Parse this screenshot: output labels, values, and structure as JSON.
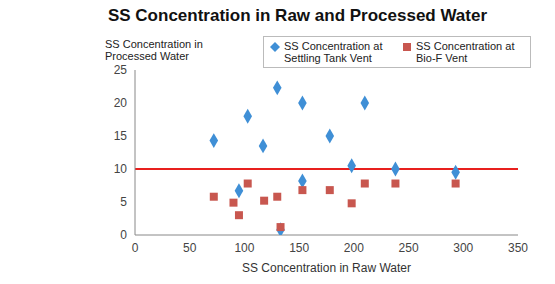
{
  "chart_data": {
    "type": "scatter",
    "title": "SS Concentration in Raw and Processed Water",
    "x_label": "SS Concentration in Raw Water",
    "y_label": "SS Concentration in Processed Water",
    "xlim": [
      0,
      350
    ],
    "xticks": [
      0,
      50,
      100,
      150,
      200,
      250,
      300,
      350
    ],
    "ylim": [
      0,
      25
    ],
    "yticks": [
      0,
      5,
      10,
      15,
      20,
      25
    ],
    "grid": false,
    "legend": "top-right",
    "reference_line": {
      "value": 10,
      "color": "#e8201e"
    },
    "series": [
      {
        "name": "SS Concentration at Settling Tank Vent",
        "color": "#3f8fd6",
        "marker": "diamond",
        "x": [
          72,
          95,
          103,
          117,
          130,
          133,
          153,
          153,
          178,
          198,
          210,
          238,
          293
        ],
        "values": [
          14.3,
          6.7,
          18,
          13.5,
          22.3,
          0.8,
          20,
          8.2,
          15,
          10.5,
          20,
          10,
          9.5
        ]
      },
      {
        "name": "SS Concentration at Bio-F Vent",
        "color": "#c8574f",
        "marker": "square",
        "x": [
          72,
          90,
          95,
          103,
          118,
          130,
          133,
          153,
          178,
          198,
          210,
          238,
          293
        ],
        "values": [
          5.8,
          4.9,
          3,
          7.8,
          5.2,
          5.8,
          1.2,
          6.8,
          6.8,
          4.8,
          7.8,
          7.8,
          7.8
        ]
      }
    ]
  }
}
